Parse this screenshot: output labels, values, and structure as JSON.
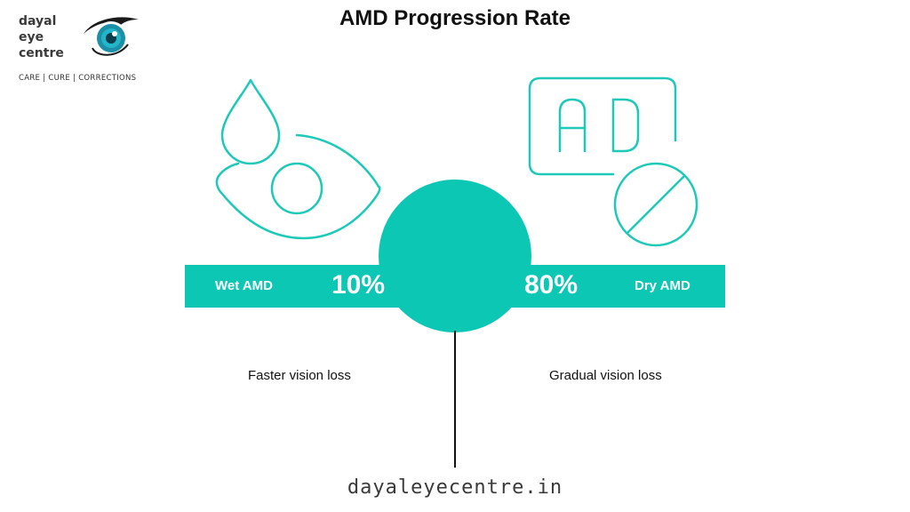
{
  "brand": {
    "line1": "dayal",
    "line2": "eye",
    "line3": "centre",
    "tagline": "CARE | CURE | CORRECTIONS",
    "logo_icon": "eye-logo-icon"
  },
  "title": "AMD Progression Rate",
  "colors": {
    "accent": "#0cc7b4",
    "icon_stroke": "#1ec9b7",
    "text": "#111111"
  },
  "left": {
    "label": "Wet AMD",
    "percent": "10%",
    "description": "Faster vision loss",
    "icon": "eye-with-droplet-icon"
  },
  "right": {
    "label": "Dry AMD",
    "percent": "80%",
    "description": "Gradual vision loss",
    "icon": "ad-no-sign-icon"
  },
  "footer": "dayaleyecentre.in"
}
